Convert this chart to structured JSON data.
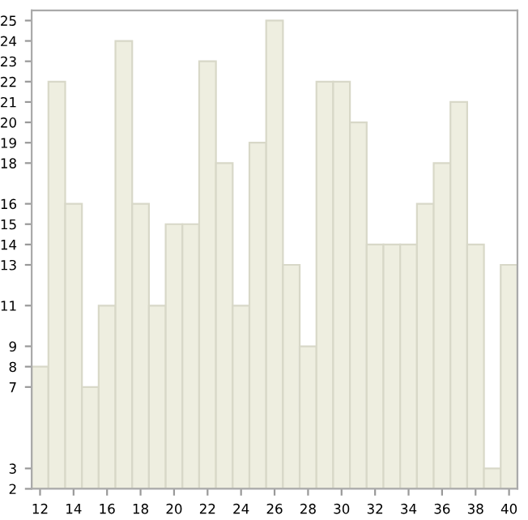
{
  "chart_data": {
    "type": "bar",
    "x": [
      12,
      13,
      14,
      15,
      16,
      17,
      18,
      19,
      20,
      21,
      22,
      23,
      24,
      25,
      26,
      27,
      28,
      29,
      30,
      31,
      32,
      33,
      34,
      35,
      36,
      37,
      38,
      39,
      40
    ],
    "values": [
      8,
      22,
      16,
      7,
      11,
      24,
      16,
      11,
      15,
      15,
      23,
      18,
      11,
      19,
      25,
      13,
      9,
      22,
      22,
      20,
      14,
      14,
      14,
      16,
      18,
      21,
      14,
      3,
      13
    ],
    "color": "#eeeee0",
    "xlim": [
      11.5,
      40.5
    ],
    "xticks": [
      12,
      14,
      16,
      18,
      20,
      22,
      24,
      26,
      28,
      30,
      32,
      34,
      36,
      38,
      40
    ],
    "ylim": [
      2,
      25.5
    ],
    "yticks": [
      2,
      3,
      7,
      8,
      9,
      11,
      13,
      14,
      15,
      16,
      18,
      19,
      20,
      21,
      22,
      23,
      24,
      25
    ],
    "grid": false
  }
}
